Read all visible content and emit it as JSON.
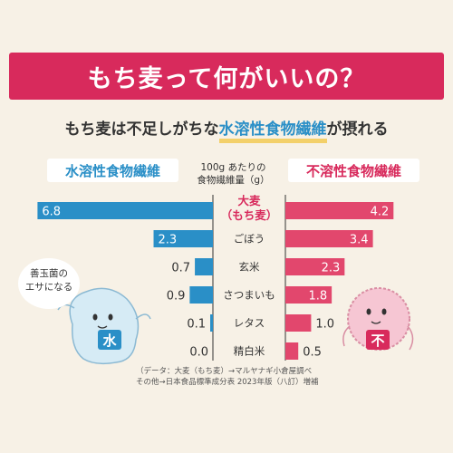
{
  "header": {
    "title": "もち麦って何がいいの？"
  },
  "subtitle": {
    "prefix": "もち麦は不足しがちな",
    "highlight": "水溶性食物繊維",
    "suffix": "が摂れる"
  },
  "legend": {
    "left": "水溶性食物繊維",
    "right": "不溶性食物繊維"
  },
  "unit": {
    "line1": "100g あたりの",
    "line2": "食物繊維量（g）"
  },
  "bubble": {
    "line1": "善玉菌の",
    "line2": "エサになる"
  },
  "mascots": {
    "left_char": "水",
    "right_char": "不"
  },
  "source": {
    "line1": "（データ：大麦（もち麦）→マルヤナギ小倉屋調べ",
    "line2": "その他→日本食品標準成分表 2023年版（八訂）増補"
  },
  "colors": {
    "soluble": "#2a8fc7",
    "insoluble": "#e2476d",
    "banner": "#d82a5c",
    "background": "#f7f1e6"
  },
  "chart_data": {
    "type": "bar",
    "orientation": "diverging-horizontal",
    "categories": [
      "大麦（もち麦）",
      "ごぼう",
      "玄米",
      "さつまいも",
      "レタス",
      "精白米"
    ],
    "category_label_lines": [
      [
        "大麦",
        "（もち麦）"
      ],
      [
        "ごぼう"
      ],
      [
        "玄米"
      ],
      [
        "さつまいも"
      ],
      [
        "レタス"
      ],
      [
        "精白米"
      ]
    ],
    "series": [
      {
        "name": "水溶性食物繊維",
        "side": "left",
        "values": [
          6.8,
          2.3,
          0.7,
          0.9,
          0.1,
          0.0
        ],
        "labels": [
          "6.8",
          "2.3",
          "0.7",
          "0.9",
          "0.1",
          "0.0"
        ]
      },
      {
        "name": "不溶性食物繊維",
        "side": "right",
        "values": [
          4.2,
          3.4,
          2.3,
          1.8,
          1.0,
          0.5
        ],
        "labels": [
          "4.2",
          "3.4",
          "2.3",
          "1.8",
          "1.0",
          "0.5"
        ]
      }
    ],
    "xlim": [
      0,
      7.2
    ]
  }
}
